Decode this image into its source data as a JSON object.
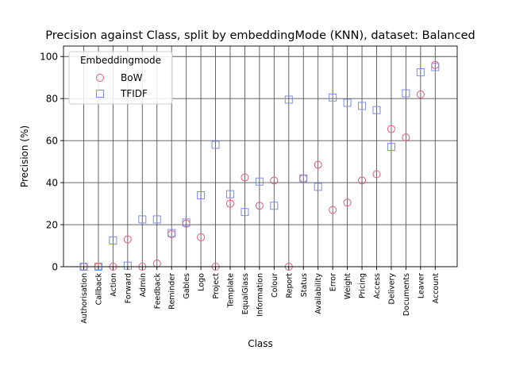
{
  "chart_data": {
    "type": "scatter",
    "title": "Precision against Class, split by embeddingMode (KNN), dataset: Balanced",
    "xlabel": "Class",
    "ylabel": "Precision (%)",
    "ylim": [
      0,
      105
    ],
    "yticks": [
      0,
      20,
      40,
      60,
      80,
      100
    ],
    "grid": true,
    "legend_position": "top-left",
    "legend_title": "Embeddingmode",
    "categories": [
      "Authorisation",
      "Callback",
      "Action",
      "Forward",
      "Admin",
      "Feedback",
      "Reminder",
      "Gables",
      "Logo",
      "Project",
      "Template",
      "EqualGlass",
      "Information",
      "Colour",
      "Report",
      "Status",
      "Availability",
      "Error",
      "Weight",
      "Pricing",
      "Access",
      "Delivery",
      "Documents",
      "Leaver",
      "Account"
    ],
    "series": [
      {
        "name": "BoW",
        "marker": "circle",
        "color": "#e05a7a",
        "values": [
          0,
          0,
          0,
          13,
          0,
          1.5,
          15.5,
          20.5,
          14,
          0,
          30,
          42.5,
          29,
          41,
          0,
          42,
          48.5,
          27,
          30.5,
          41,
          44,
          65.5,
          61.5,
          82,
          96
        ]
      },
      {
        "name": "TFIDF",
        "marker": "square",
        "color": "#7b8ee0",
        "values": [
          0,
          0,
          12.5,
          0.5,
          22.5,
          22.5,
          16,
          21,
          34,
          58,
          34.5,
          26,
          40.5,
          29,
          79.5,
          42,
          38,
          80.5,
          78,
          76.5,
          74.5,
          57,
          82.5,
          92.5,
          95
        ]
      }
    ]
  }
}
